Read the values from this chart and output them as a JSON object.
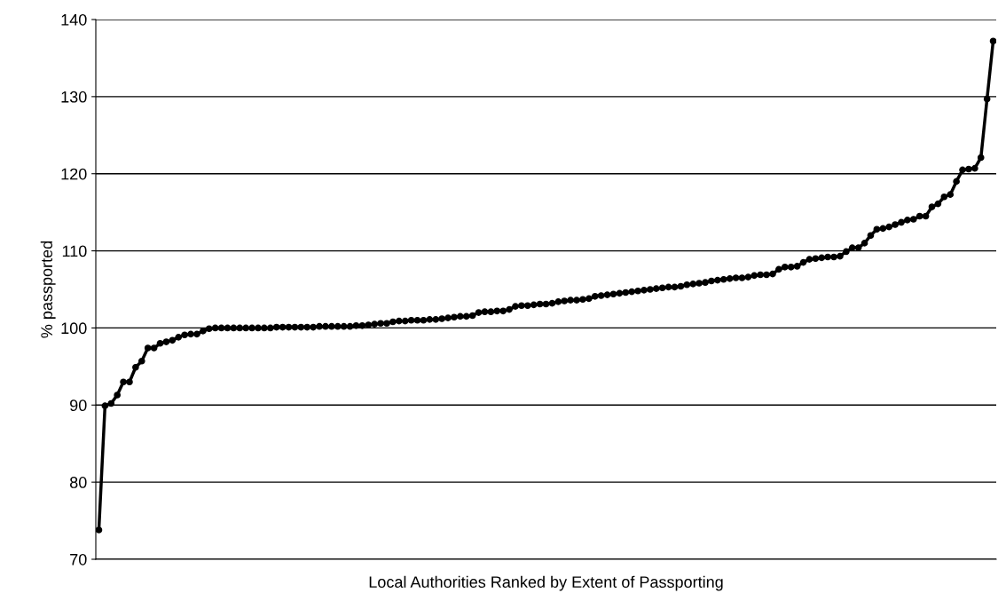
{
  "chart_data": {
    "type": "line",
    "xlabel": "Local Authorities Ranked by Extent of Passporting",
    "ylabel": "% passported",
    "categories": [
      null,
      null,
      null,
      null,
      null,
      null,
      null,
      null,
      null,
      null,
      null,
      null,
      null,
      null,
      null,
      null,
      null,
      null,
      null,
      null,
      null,
      null,
      null,
      null,
      null,
      null,
      null,
      null,
      null,
      null,
      null,
      null,
      null,
      null,
      null,
      null,
      null,
      null,
      null,
      null,
      null,
      null,
      null,
      null,
      null,
      null,
      null,
      null,
      null,
      null,
      null,
      null,
      null,
      null,
      null,
      null,
      null,
      null,
      null,
      null,
      null,
      null,
      null,
      null,
      null,
      null,
      null,
      null,
      null,
      null,
      null,
      null,
      null,
      null,
      null,
      null,
      null,
      null,
      null,
      null,
      null,
      null,
      null,
      null,
      null,
      null,
      null,
      null,
      null,
      null,
      null,
      null,
      null,
      null,
      null,
      null,
      null,
      null,
      null,
      null,
      null,
      null,
      null,
      null,
      null,
      null,
      null,
      null,
      null,
      null,
      null,
      null,
      null,
      null,
      null,
      null,
      null,
      null,
      null,
      null,
      null,
      null,
      null,
      null,
      null,
      null,
      null,
      null,
      null,
      null,
      null,
      null,
      null,
      null,
      null,
      null,
      null,
      null,
      null,
      null,
      null,
      null,
      null,
      null,
      null,
      null,
      null
    ],
    "series": [
      {
        "color": "#000000",
        "values": [
          73.8,
          89.9,
          90.2,
          91.3,
          93.0,
          93.0,
          94.9,
          95.7,
          97.4,
          97.4,
          98.0,
          98.2,
          98.4,
          98.8,
          99.1,
          99.2,
          99.2,
          99.6,
          99.9,
          100.0,
          100.0,
          100.0,
          100.0,
          100.0,
          100.0,
          100.0,
          100.0,
          100.0,
          100.0,
          100.1,
          100.1,
          100.1,
          100.1,
          100.1,
          100.1,
          100.1,
          100.2,
          100.2,
          100.2,
          100.2,
          100.2,
          100.2,
          100.3,
          100.3,
          100.4,
          100.5,
          100.6,
          100.6,
          100.8,
          100.9,
          100.9,
          101.0,
          101.0,
          101.0,
          101.1,
          101.1,
          101.2,
          101.3,
          101.4,
          101.5,
          101.5,
          101.6,
          102.0,
          102.1,
          102.1,
          102.2,
          102.2,
          102.4,
          102.8,
          102.9,
          102.9,
          103.0,
          103.1,
          103.1,
          103.2,
          103.4,
          103.5,
          103.6,
          103.6,
          103.7,
          103.8,
          104.1,
          104.2,
          104.3,
          104.4,
          104.5,
          104.6,
          104.7,
          104.8,
          104.9,
          105.0,
          105.1,
          105.2,
          105.3,
          105.3,
          105.4,
          105.6,
          105.7,
          105.8,
          105.9,
          106.1,
          106.2,
          106.3,
          106.4,
          106.5,
          106.5,
          106.6,
          106.8,
          106.9,
          106.9,
          107.0,
          107.6,
          107.9,
          107.9,
          108.0,
          108.5,
          108.9,
          109.0,
          109.1,
          109.2,
          109.2,
          109.3,
          109.9,
          110.4,
          110.4,
          111.0,
          112.0,
          112.8,
          112.9,
          113.1,
          113.4,
          113.7,
          114.0,
          114.1,
          114.5,
          114.5,
          115.7,
          116.1,
          117.0,
          117.3,
          119.0,
          120.5,
          120.6,
          120.7,
          122.1,
          129.7,
          137.2
        ]
      }
    ],
    "ylim": [
      70,
      140
    ],
    "yticks": [
      70,
      80,
      90,
      100,
      110,
      120,
      130,
      140
    ],
    "grid": "y",
    "marker": "circle",
    "line_style": "solid"
  }
}
